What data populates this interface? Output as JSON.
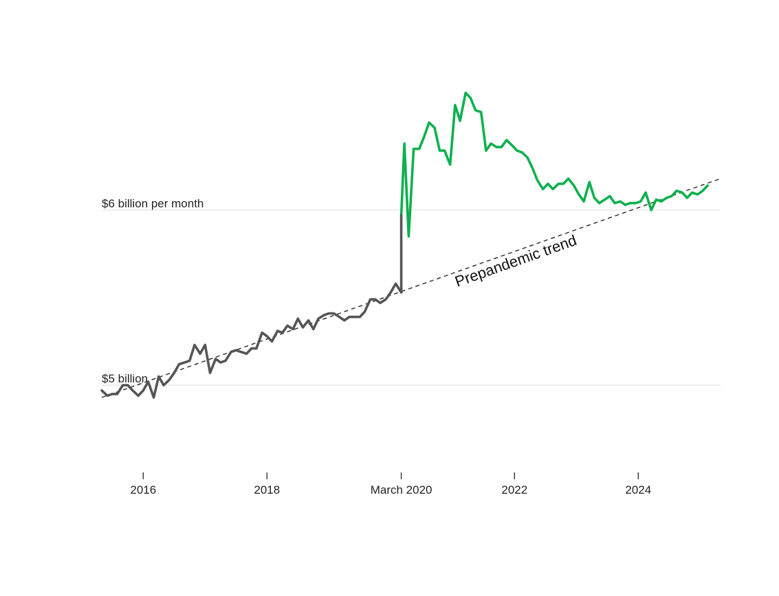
{
  "colors": {
    "prepandemic_series": "#555555",
    "postpandemic_series": "#0cb04e",
    "trend": "#333333",
    "grid": "#e3e3e3"
  },
  "chart_data": {
    "type": "line",
    "title": "",
    "xlabel": "",
    "ylabel": "",
    "x_range": [
      2015.33,
      2025.33
    ],
    "ylim": [
      4.45,
      6.7
    ],
    "grid": "horizontal",
    "y_tick_labels": [
      {
        "value": 6,
        "label": "$6 billion per month"
      },
      {
        "value": 5,
        "label": "$5 billion"
      }
    ],
    "x_tick_labels": [
      {
        "value": 2016.0,
        "label": "2016"
      },
      {
        "value": 2018.0,
        "label": "2018"
      },
      {
        "value": 2020.17,
        "label": "March 2020"
      },
      {
        "value": 2022.0,
        "label": "2022"
      },
      {
        "value": 2024.0,
        "label": "2024"
      }
    ],
    "annotation": {
      "text": "Prepandemic trend"
    },
    "trend": {
      "start": [
        2015.33,
        4.93
      ],
      "end": [
        2025.33,
        6.18
      ]
    },
    "series": [
      {
        "values": [
          [
            2015.33,
            4.97
          ],
          [
            2015.42,
            4.94
          ],
          [
            2015.5,
            4.95
          ],
          [
            2015.58,
            4.95
          ],
          [
            2015.67,
            5.0
          ],
          [
            2015.75,
            5.0
          ],
          [
            2015.83,
            4.97
          ],
          [
            2015.92,
            4.94
          ],
          [
            2016.0,
            4.97
          ],
          [
            2016.08,
            5.02
          ],
          [
            2016.17,
            4.93
          ],
          [
            2016.25,
            5.05
          ],
          [
            2016.33,
            5.0
          ],
          [
            2016.42,
            5.03
          ],
          [
            2016.5,
            5.07
          ],
          [
            2016.58,
            5.12
          ],
          [
            2016.67,
            5.13
          ],
          [
            2016.75,
            5.14
          ],
          [
            2016.83,
            5.23
          ],
          [
            2016.92,
            5.18
          ],
          [
            2017.0,
            5.23
          ],
          [
            2017.08,
            5.07
          ],
          [
            2017.17,
            5.15
          ],
          [
            2017.25,
            5.13
          ],
          [
            2017.33,
            5.14
          ],
          [
            2017.42,
            5.19
          ],
          [
            2017.5,
            5.2
          ],
          [
            2017.58,
            5.19
          ],
          [
            2017.67,
            5.18
          ],
          [
            2017.75,
            5.21
          ],
          [
            2017.83,
            5.21
          ],
          [
            2017.92,
            5.3
          ],
          [
            2018.0,
            5.28
          ],
          [
            2018.08,
            5.25
          ],
          [
            2018.17,
            5.31
          ],
          [
            2018.25,
            5.3
          ],
          [
            2018.33,
            5.34
          ],
          [
            2018.42,
            5.32
          ],
          [
            2018.5,
            5.38
          ],
          [
            2018.58,
            5.33
          ],
          [
            2018.67,
            5.37
          ],
          [
            2018.75,
            5.32
          ],
          [
            2018.83,
            5.38
          ],
          [
            2018.92,
            5.4
          ],
          [
            2019.0,
            5.41
          ],
          [
            2019.08,
            5.41
          ],
          [
            2019.17,
            5.39
          ],
          [
            2019.25,
            5.37
          ],
          [
            2019.33,
            5.39
          ],
          [
            2019.42,
            5.39
          ],
          [
            2019.5,
            5.39
          ],
          [
            2019.58,
            5.42
          ],
          [
            2019.67,
            5.49
          ],
          [
            2019.75,
            5.49
          ],
          [
            2019.83,
            5.47
          ],
          [
            2019.92,
            5.49
          ],
          [
            2020.0,
            5.53
          ],
          [
            2020.08,
            5.58
          ],
          [
            2020.17,
            5.53
          ]
        ]
      },
      {
        "values": [
          [
            2020.17,
            5.97
          ],
          [
            2020.22,
            6.38
          ],
          [
            2020.29,
            5.85
          ],
          [
            2020.37,
            6.35
          ],
          [
            2020.46,
            6.35
          ],
          [
            2020.54,
            6.42
          ],
          [
            2020.62,
            6.5
          ],
          [
            2020.71,
            6.47
          ],
          [
            2020.79,
            6.34
          ],
          [
            2020.87,
            6.34
          ],
          [
            2020.96,
            6.26
          ],
          [
            2021.04,
            6.6
          ],
          [
            2021.12,
            6.51
          ],
          [
            2021.21,
            6.67
          ],
          [
            2021.29,
            6.64
          ],
          [
            2021.37,
            6.57
          ],
          [
            2021.46,
            6.56
          ],
          [
            2021.54,
            6.34
          ],
          [
            2021.62,
            6.38
          ],
          [
            2021.71,
            6.36
          ],
          [
            2021.79,
            6.36
          ],
          [
            2021.87,
            6.4
          ],
          [
            2021.96,
            6.37
          ],
          [
            2022.04,
            6.34
          ],
          [
            2022.12,
            6.33
          ],
          [
            2022.21,
            6.3
          ],
          [
            2022.29,
            6.24
          ],
          [
            2022.37,
            6.17
          ],
          [
            2022.46,
            6.12
          ],
          [
            2022.54,
            6.15
          ],
          [
            2022.62,
            6.12
          ],
          [
            2022.71,
            6.15
          ],
          [
            2022.79,
            6.15
          ],
          [
            2022.87,
            6.18
          ],
          [
            2022.96,
            6.14
          ],
          [
            2023.04,
            6.09
          ],
          [
            2023.12,
            6.05
          ],
          [
            2023.21,
            6.16
          ],
          [
            2023.29,
            6.07
          ],
          [
            2023.37,
            6.04
          ],
          [
            2023.46,
            6.06
          ],
          [
            2023.54,
            6.08
          ],
          [
            2023.62,
            6.04
          ],
          [
            2023.71,
            6.05
          ],
          [
            2023.79,
            6.03
          ],
          [
            2023.87,
            6.04
          ],
          [
            2023.96,
            6.04
          ],
          [
            2024.04,
            6.05
          ],
          [
            2024.12,
            6.1
          ],
          [
            2024.21,
            6.0
          ],
          [
            2024.29,
            6.06
          ],
          [
            2024.37,
            6.05
          ],
          [
            2024.46,
            6.07
          ],
          [
            2024.54,
            6.08
          ],
          [
            2024.62,
            6.11
          ],
          [
            2024.71,
            6.1
          ],
          [
            2024.79,
            6.07
          ],
          [
            2024.87,
            6.1
          ],
          [
            2024.96,
            6.09
          ],
          [
            2025.04,
            6.11
          ],
          [
            2025.12,
            6.14
          ]
        ]
      }
    ]
  }
}
